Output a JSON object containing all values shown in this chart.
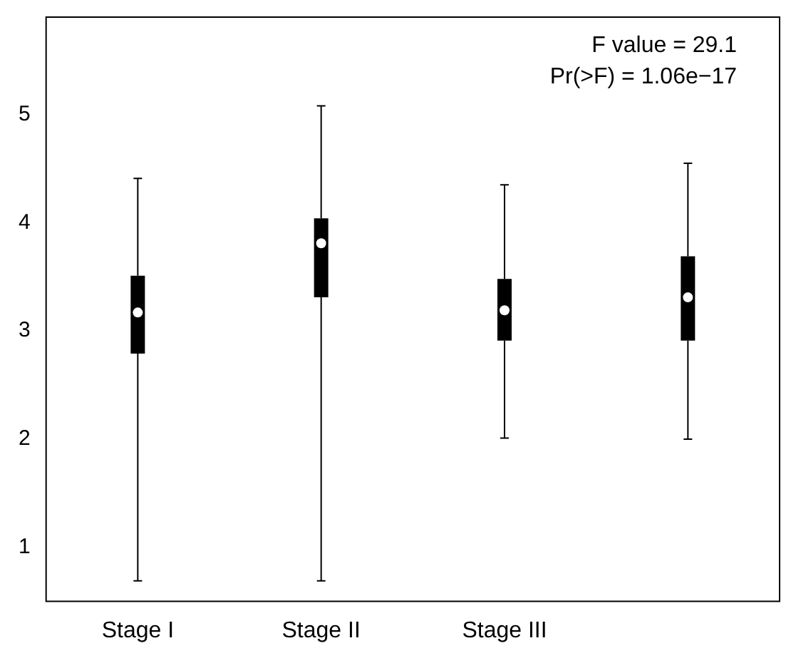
{
  "chart_data": {
    "type": "box",
    "categories": [
      "Stage I",
      "Stage II",
      "Stage III",
      null
    ],
    "color": "#000000",
    "boxes": [
      {
        "low": 0.69,
        "q1": 2.79,
        "median": 3.17,
        "q3": 3.51,
        "high": 4.41
      },
      {
        "low": 0.69,
        "q1": 3.31,
        "median": 3.81,
        "q3": 4.04,
        "high": 5.08
      },
      {
        "low": 2.01,
        "q1": 2.91,
        "median": 3.19,
        "q3": 3.48,
        "high": 4.35
      },
      {
        "low": 2.0,
        "q1": 2.91,
        "median": 3.31,
        "q3": 3.69,
        "high": 4.55
      }
    ],
    "ylim": [
      0.5,
      5.9
    ],
    "yticks": [
      1,
      2,
      3,
      4,
      5
    ],
    "grid": false,
    "legend": false,
    "annotations": [
      "F value = 29.1",
      "Pr(>F) = 1.06e−17"
    ]
  }
}
